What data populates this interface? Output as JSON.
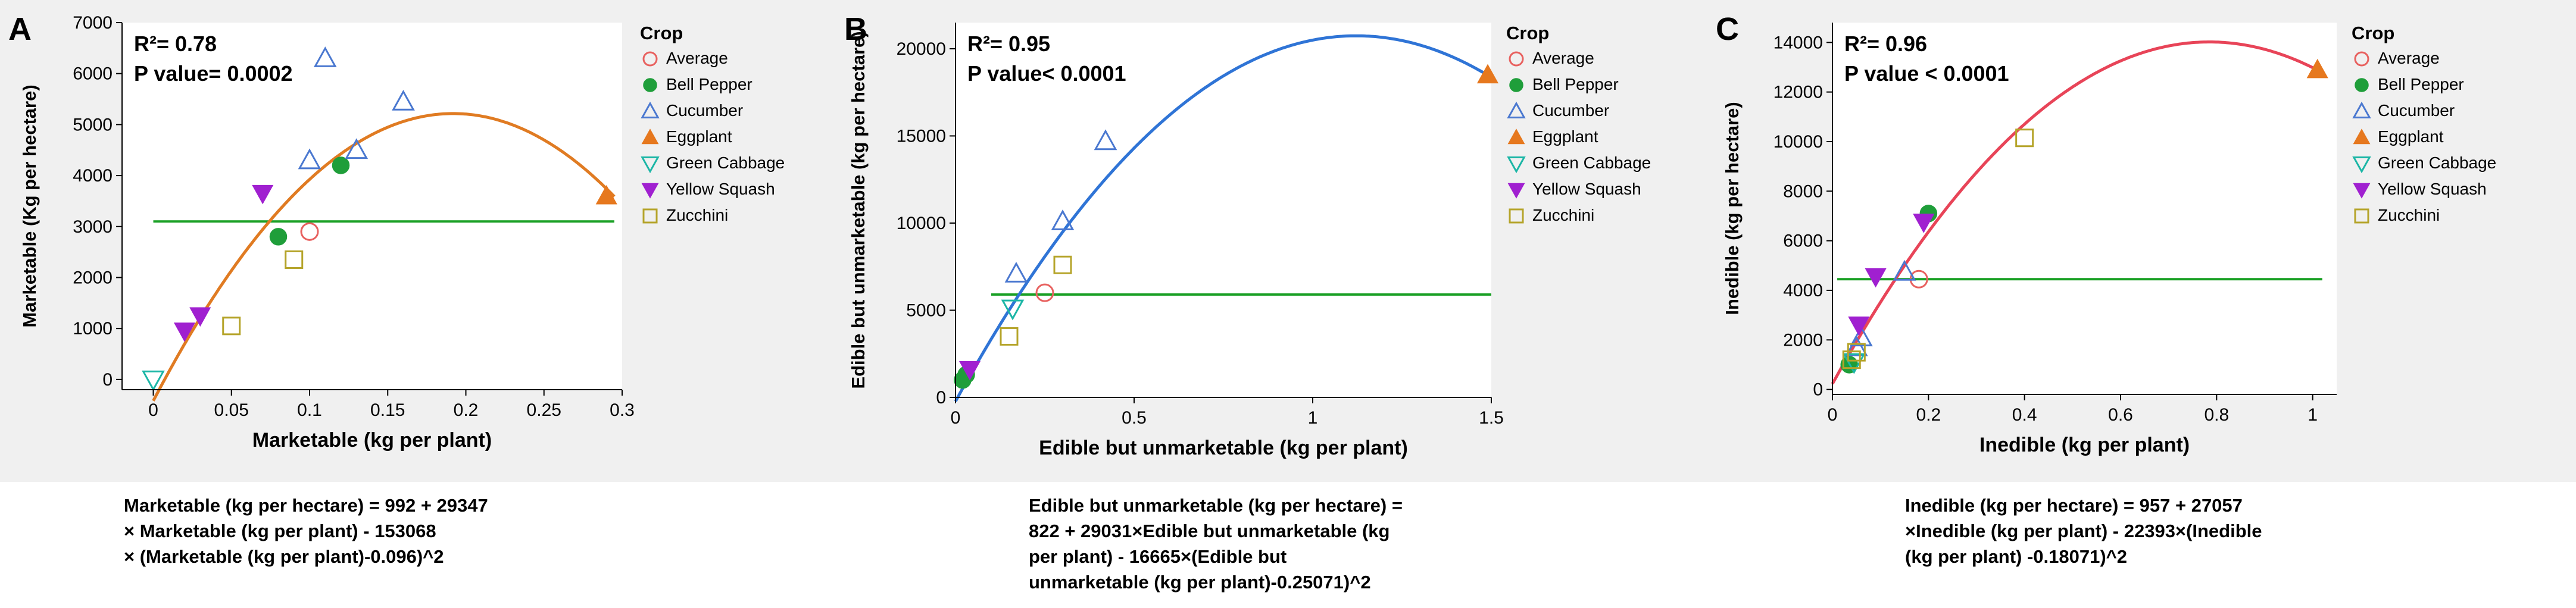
{
  "panels": [
    {
      "letter": "A",
      "title": "",
      "stats": [
        "R²= 0.78",
        "P value= 0.0002"
      ],
      "equation": [
        "Marketable (kg per hectare) = 992 + 29347",
        "× Marketable (kg per plant) - 153068",
        "× (Marketable (kg per plant)-0.096)^2"
      ]
    },
    {
      "letter": "B",
      "title": "",
      "stats": [
        "R²= 0.95",
        "P value< 0.0001"
      ],
      "equation": [
        "Edible but unmarketable (kg per hectare) =",
        "822 + 29031×Edible but unmarketable (kg",
        "per plant) - 16665×(Edible  but",
        "unmarketable (kg per plant)-0.25071)^2"
      ]
    },
    {
      "letter": "C",
      "title": "",
      "stats": [
        "R²= 0.96",
        "P value < 0.0001"
      ],
      "equation": [
        "Inedible (kg per hectare) = 957 + 27057",
        "×Inedible  (kg per plant) - 22393×(Inedible",
        "(kg per plant) -0.18071)^2"
      ]
    }
  ],
  "legend": {
    "title": "Crop",
    "items": [
      {
        "label": "Average",
        "marker": "open-circle",
        "color": "#e8615f"
      },
      {
        "label": "Bell Pepper",
        "marker": "filled-circle",
        "color": "#1f9e3a"
      },
      {
        "label": "Cucumber",
        "marker": "open-triangle-up",
        "color": "#4a78d0"
      },
      {
        "label": "Eggplant",
        "marker": "filled-triangle-up",
        "color": "#e6781e"
      },
      {
        "label": "Green Cabbage",
        "marker": "open-triangle-down",
        "color": "#1cb6a6"
      },
      {
        "label": "Yellow Squash",
        "marker": "filled-triangle-down",
        "color": "#a020d0"
      },
      {
        "label": "Zucchini",
        "marker": "open-square",
        "color": "#b5a42a"
      }
    ]
  },
  "chart_data": [
    {
      "type": "scatter",
      "xlabel": "Marketable (kg per plant)",
      "ylabel": "Marketable (Kg per hectare)",
      "xlim": [
        -0.02,
        0.3
      ],
      "ylim": [
        -200,
        7000
      ],
      "xticks": [
        0,
        0.05,
        0.1,
        0.15,
        0.2,
        0.25,
        0.3
      ],
      "xtick_labels": [
        "0",
        "0.05",
        "0.1",
        "0.15",
        "0.2",
        "0.25",
        "0.3"
      ],
      "yticks": [
        0,
        1000,
        2000,
        3000,
        4000,
        5000,
        6000,
        7000
      ],
      "ytick_labels": [
        "0",
        "1000",
        "2000",
        "3000",
        "4000",
        "5000",
        "6000",
        "7000"
      ],
      "fit": {
        "a": 992,
        "b": 29347,
        "c": -153068,
        "x0": 0.096,
        "from": 0,
        "to": 0.295,
        "color": "#e07b22"
      },
      "mean_line": {
        "y": 3100,
        "from": 0,
        "to": 0.295,
        "color": "#1aa025"
      },
      "series": [
        {
          "name": "Average",
          "x": [
            0.1
          ],
          "y": [
            2900
          ]
        },
        {
          "name": "Bell Pepper",
          "x": [
            0.08,
            0.12
          ],
          "y": [
            2800,
            4200
          ]
        },
        {
          "name": "Cucumber",
          "x": [
            0.1,
            0.11,
            0.13,
            0.16
          ],
          "y": [
            4300,
            6300,
            4500,
            5450
          ]
        },
        {
          "name": "Eggplant",
          "x": [
            0.29
          ],
          "y": [
            3600
          ]
        },
        {
          "name": "Green Cabbage",
          "x": [
            0.0
          ],
          "y": [
            0
          ]
        },
        {
          "name": "Yellow Squash",
          "x": [
            0.02,
            0.03,
            0.07
          ],
          "y": [
            950,
            1250,
            3650
          ]
        },
        {
          "name": "Zucchini",
          "x": [
            0.05,
            0.09
          ],
          "y": [
            1050,
            2350
          ]
        }
      ]
    },
    {
      "type": "scatter",
      "xlabel": "Edible but unmarketable (kg per plant)",
      "ylabel": "Edible but unmarketable (kg per hectare)",
      "xlim": [
        0,
        1.5
      ],
      "ylim": [
        0,
        21500
      ],
      "xticks": [
        0,
        0.5,
        1,
        1.5
      ],
      "xtick_labels": [
        "0",
        "0.5",
        "1",
        "1.5"
      ],
      "yticks": [
        0,
        5000,
        10000,
        15000,
        20000
      ],
      "ytick_labels": [
        "0",
        "5000",
        "10000",
        "15000",
        "20000"
      ],
      "fit": {
        "a": 822,
        "b": 29031,
        "c": -16665,
        "x0": 0.25071,
        "from": 0,
        "to": 1.5,
        "color": "#2f74d6"
      },
      "mean_line": {
        "y": 5900,
        "from": 0.1,
        "to": 1.5,
        "color": "#1aa025"
      },
      "series": [
        {
          "name": "Average",
          "x": [
            0.25
          ],
          "y": [
            6000
          ]
        },
        {
          "name": "Bell Pepper",
          "x": [
            0.02,
            0.03
          ],
          "y": [
            1000,
            1300
          ]
        },
        {
          "name": "Cucumber",
          "x": [
            0.17,
            0.3,
            0.42
          ],
          "y": [
            7100,
            10100,
            14700
          ]
        },
        {
          "name": "Eggplant",
          "x": [
            1.49
          ],
          "y": [
            18500
          ]
        },
        {
          "name": "Green Cabbage",
          "x": [
            0.16
          ],
          "y": [
            5100
          ]
        },
        {
          "name": "Yellow Squash",
          "x": [
            0.04
          ],
          "y": [
            1600
          ]
        },
        {
          "name": "Zucchini",
          "x": [
            0.15,
            0.3
          ],
          "y": [
            3500,
            7600
          ]
        }
      ]
    },
    {
      "type": "scatter",
      "xlabel": "Inedible (kg per plant)",
      "ylabel": "Inedible (kg per hectare)",
      "xlim": [
        0,
        1.05
      ],
      "ylim": [
        -200,
        14800
      ],
      "xticks": [
        0,
        0.2,
        0.4,
        0.6,
        0.8,
        1
      ],
      "xtick_labels": [
        "0",
        "0.2",
        "0.4",
        "0.6",
        "0.8",
        "1"
      ],
      "yticks": [
        0,
        2000,
        4000,
        6000,
        8000,
        10000,
        12000,
        14000
      ],
      "ytick_labels": [
        "0",
        "2000",
        "4000",
        "6000",
        "8000",
        "10000",
        "12000",
        "14000"
      ],
      "fit": {
        "a": 957,
        "b": 27057,
        "c": -22393,
        "x0": 0.18071,
        "from": 0,
        "to": 1.02,
        "color": "#e84458"
      },
      "mean_line": {
        "y": 4450,
        "from": 0.01,
        "to": 1.02,
        "color": "#1aa025"
      },
      "series": [
        {
          "name": "Average",
          "x": [
            0.18
          ],
          "y": [
            4450
          ]
        },
        {
          "name": "Bell Pepper",
          "x": [
            0.035,
            0.2
          ],
          "y": [
            1000,
            7100
          ]
        },
        {
          "name": "Cucumber",
          "x": [
            0.05,
            0.06,
            0.15
          ],
          "y": [
            1700,
            2100,
            4750
          ]
        },
        {
          "name": "Eggplant",
          "x": [
            1.01
          ],
          "y": [
            12900
          ]
        },
        {
          "name": "Green Cabbage",
          "x": [
            0.045
          ],
          "y": [
            1100
          ]
        },
        {
          "name": "Yellow Squash",
          "x": [
            0.055,
            0.09,
            0.19
          ],
          "y": [
            2600,
            4550,
            6750
          ]
        },
        {
          "name": "Zucchini",
          "x": [
            0.04,
            0.05,
            0.4
          ],
          "y": [
            1200,
            1500,
            10150
          ]
        }
      ]
    }
  ]
}
